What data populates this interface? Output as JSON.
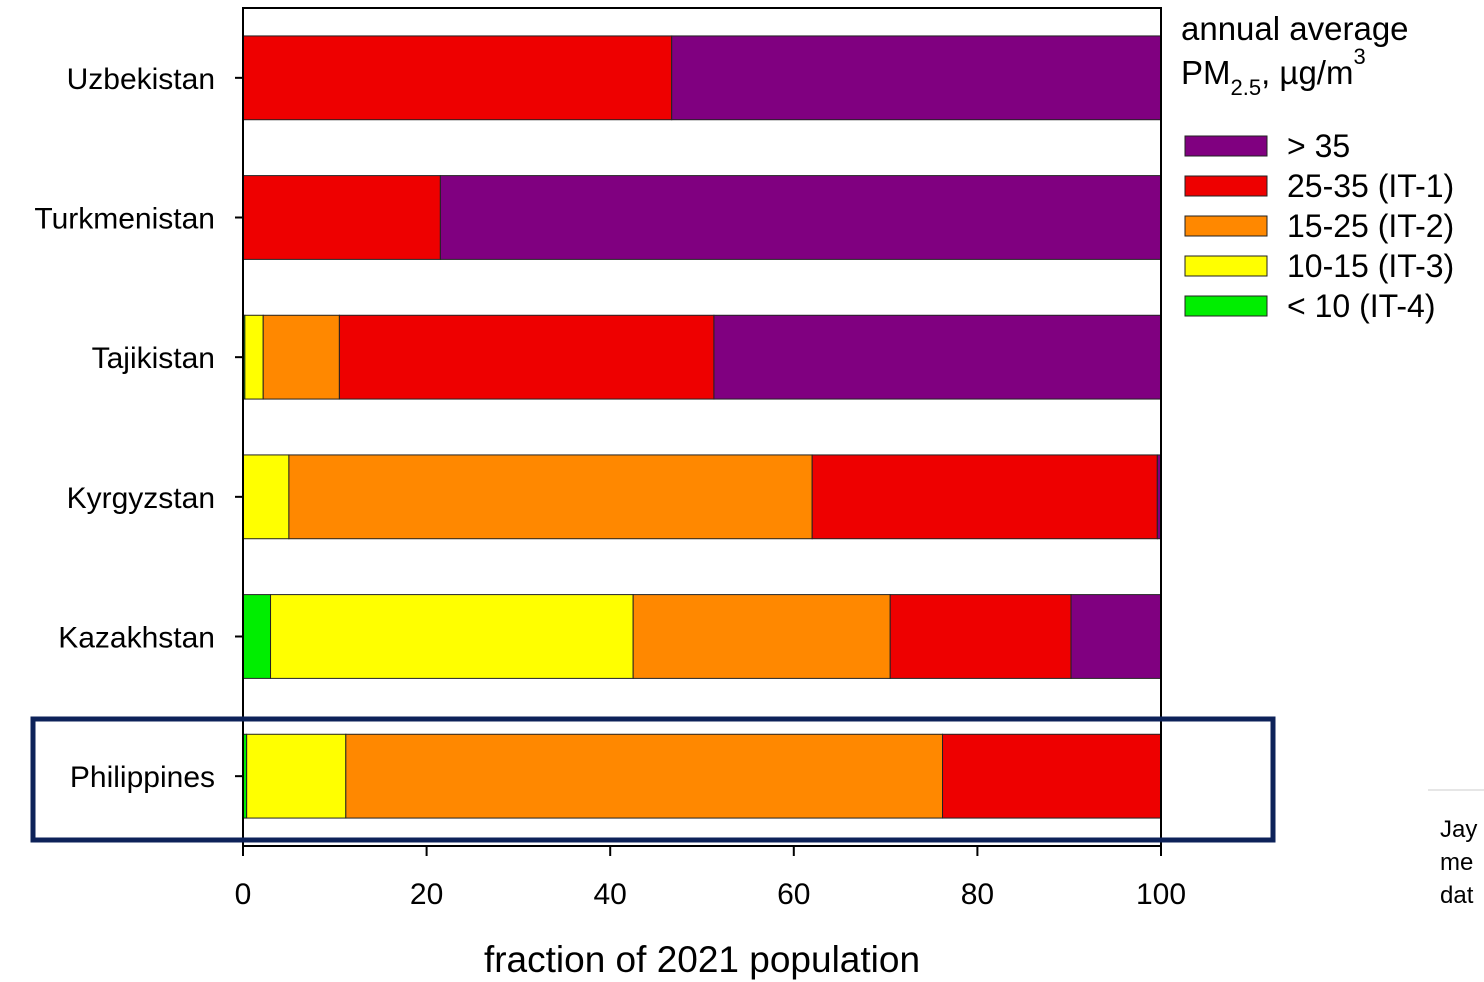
{
  "chart_data": {
    "type": "bar",
    "orientation": "horizontal",
    "stacked": true,
    "categories": [
      "Uzbekistan",
      "Turkmenistan",
      "Tajikistan",
      "Kyrgyzstan",
      "Kazakhstan",
      "Philippines"
    ],
    "highlighted_category": "Philippines",
    "highlight_color": "#0d2259",
    "series": [
      {
        "name": "< 10 (IT-4)",
        "color": "#00ee00",
        "values": [
          0,
          0,
          0.2,
          0,
          3,
          0.4
        ]
      },
      {
        "name": "10-15 (IT-3)",
        "color": "#ffff00",
        "values": [
          0,
          0,
          2,
          5,
          39.5,
          10.8
        ]
      },
      {
        "name": "15-25 (IT-2)",
        "color": "#ff8800",
        "values": [
          0,
          0,
          8.3,
          57,
          28,
          65
        ]
      },
      {
        "name": "25-35 (IT-1)",
        "color": "#ee0000",
        "values": [
          46.7,
          21.5,
          40.8,
          37.6,
          19.7,
          23.8
        ]
      },
      {
        "name": "> 35",
        "color": "#800080",
        "values": [
          53.3,
          78.5,
          48.7,
          0.4,
          9.8,
          0
        ]
      }
    ],
    "xlabel": "fraction of 2021 population",
    "xlim": [
      0,
      100
    ],
    "xticks": [
      "0",
      "20",
      "40",
      "60",
      "80",
      "100"
    ],
    "legend": {
      "title_line1": "annual average",
      "title_line2_main": "PM",
      "title_line2_sub": "2.5",
      "title_line2_rest": ", µg/m",
      "title_line2_sup": "3",
      "order": [
        "> 35",
        "25-35 (IT-1)",
        "15-25 (IT-2)",
        "10-15 (IT-3)",
        "< 10 (IT-4)"
      ],
      "placement": "right"
    },
    "grid": false
  },
  "side_note": {
    "line1": "Jay",
    "line2": "me",
    "line3": "dat"
  }
}
